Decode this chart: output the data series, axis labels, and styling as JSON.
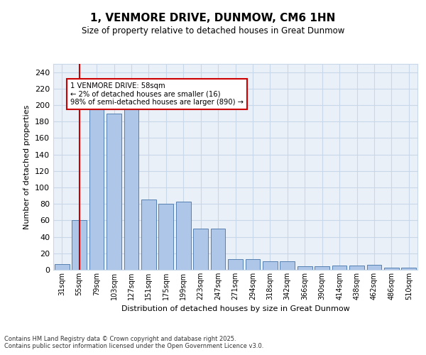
{
  "title": "1, VENMORE DRIVE, DUNMOW, CM6 1HN",
  "subtitle": "Size of property relative to detached houses in Great Dunmow",
  "xlabel": "Distribution of detached houses by size in Great Dunmow",
  "ylabel": "Number of detached properties",
  "categories": [
    "31sqm",
    "55sqm",
    "79sqm",
    "103sqm",
    "127sqm",
    "151sqm",
    "175sqm",
    "199sqm",
    "223sqm",
    "247sqm",
    "271sqm",
    "294sqm",
    "318sqm",
    "342sqm",
    "366sqm",
    "390sqm",
    "414sqm",
    "438sqm",
    "462sqm",
    "486sqm",
    "510sqm"
  ],
  "values": [
    7,
    60,
    200,
    190,
    195,
    85,
    80,
    83,
    50,
    50,
    13,
    13,
    10,
    10,
    4,
    4,
    5,
    5,
    6,
    3,
    3
  ],
  "bar_color": "#aec6e8",
  "bar_edge_color": "#5580b0",
  "grid_color": "#c8d8e8",
  "background_color": "#eaf0f8",
  "annotation_line1": "1 VENMORE DRIVE: 58sqm",
  "annotation_line2": "← 2% of detached houses are smaller (16)",
  "annotation_line3": "98% of semi-detached houses are larger (890) →",
  "annotation_box_color": "#cc0000",
  "vline_color": "#cc0000",
  "footer_text": "Contains HM Land Registry data © Crown copyright and database right 2025.\nContains public sector information licensed under the Open Government Licence v3.0.",
  "ylim": [
    0,
    250
  ],
  "yticks": [
    0,
    20,
    40,
    60,
    80,
    100,
    120,
    140,
    160,
    180,
    200,
    220,
    240
  ]
}
